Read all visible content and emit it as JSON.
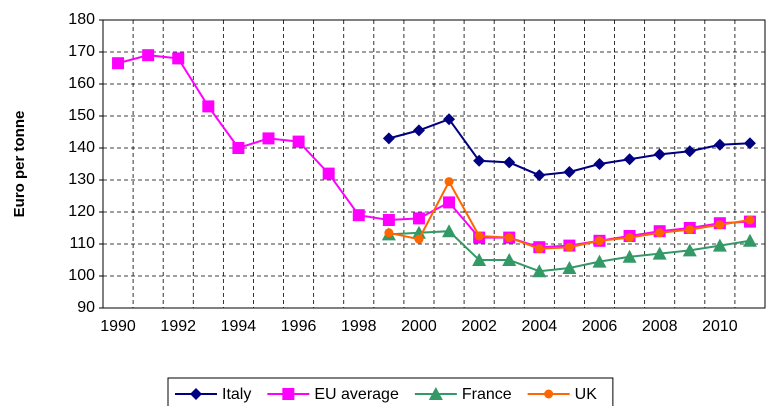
{
  "chart_data": {
    "type": "line",
    "y_label": "Euro per tonne",
    "categories": [
      "1990",
      null,
      "1992",
      null,
      "1994",
      null,
      "1996",
      null,
      "1998",
      null,
      "2000",
      null,
      "2002",
      null,
      "2004",
      null,
      "2006",
      null,
      "2008",
      null,
      "2010",
      null
    ],
    "series": [
      {
        "name": "Italy",
        "color": "#000080",
        "marker": "diamond",
        "values": [
          null,
          null,
          null,
          null,
          null,
          null,
          null,
          null,
          null,
          143,
          145.5,
          149,
          136,
          135.5,
          131.5,
          132.5,
          135,
          136.5,
          138,
          139,
          141,
          141.5
        ]
      },
      {
        "name": "EU average",
        "color": "#ff00ff",
        "marker": "square",
        "values": [
          166.5,
          169,
          168,
          153,
          140,
          143,
          142,
          132,
          119,
          117.5,
          118,
          123,
          112,
          112,
          109,
          109.5,
          111,
          112.5,
          114,
          115,
          116.5,
          117
        ]
      },
      {
        "name": "France",
        "color": "#339966",
        "marker": "triangle",
        "values": [
          null,
          null,
          null,
          null,
          null,
          null,
          null,
          null,
          null,
          113,
          113.5,
          114,
          105,
          105,
          101.5,
          102.5,
          104.5,
          106,
          107,
          108,
          109.5,
          111
        ]
      },
      {
        "name": "UK",
        "color": "#ff6600",
        "marker": "circle",
        "values": [
          null,
          null,
          null,
          null,
          null,
          null,
          null,
          null,
          null,
          113.5,
          111.5,
          129.5,
          112.5,
          112,
          108.5,
          109,
          111,
          112,
          113.5,
          114.5,
          116,
          117.5
        ]
      }
    ],
    "ylim": [
      90,
      180
    ],
    "yticks": [
      90,
      100,
      110,
      120,
      130,
      140,
      150,
      160,
      170,
      180
    ],
    "grid": true,
    "legend": "bottom"
  }
}
